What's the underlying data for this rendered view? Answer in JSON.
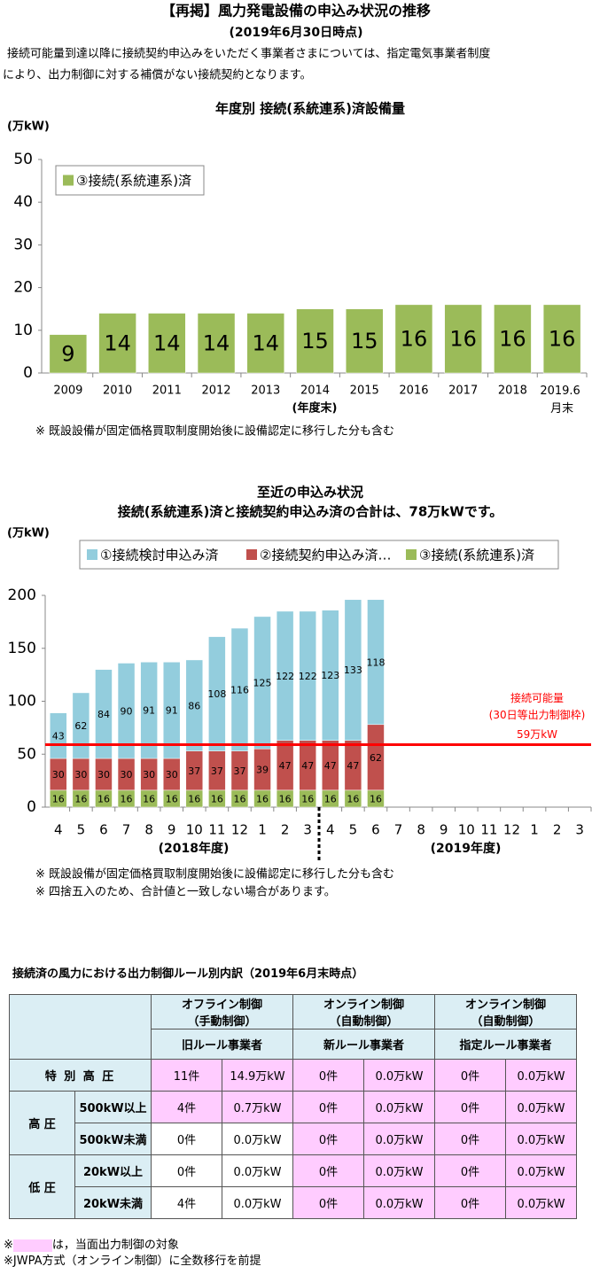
{
  "header": {
    "title": "【再掲】風力発電設備の申込み状況の推移",
    "date": "(2019年6月30日時点)",
    "notes": [
      "接続可能量到達以降に接続契約申込みをいただく事業者さまについては、指定電気事業者制度",
      "により、出力制御に対する補償がない接続契約となります。"
    ]
  },
  "chart_data": [
    {
      "type": "bar",
      "title": "年度別  接続(系統連系)済設備量",
      "y_label": "(万kW)",
      "x_label": "(年度末)",
      "categories": [
        "2009",
        "2010",
        "2011",
        "2012",
        "2013",
        "2014",
        "2015",
        "2016",
        "2017",
        "2018",
        "2019.6 月末"
      ],
      "series": [
        {
          "name": "③接続(系統連系)済",
          "color": "#9bbb59",
          "values": [
            9,
            14,
            14,
            14,
            14,
            15,
            15,
            16,
            16,
            16,
            16
          ]
        }
      ],
      "ylim": [
        0,
        50
      ],
      "yticks": [
        0,
        10,
        20,
        30,
        40,
        50
      ],
      "legend": "upper left",
      "notes": [
        "※ 既設設備が固定価格買取制度開始後に設備認定に移行した分も含む"
      ]
    },
    {
      "type": "bar",
      "stacked": true,
      "title": "至近の申込み状況",
      "subtitle": "接続(系統連系)済と接続契約申込み済の合計は、78万kWです。",
      "y_label": "(万kW)",
      "categories": [
        "4",
        "5",
        "6",
        "7",
        "8",
        "9",
        "10",
        "11",
        "12",
        "1",
        "2",
        "3",
        "4",
        "5",
        "6",
        "7",
        "8",
        "9",
        "10",
        "11",
        "12",
        "1",
        "2",
        "3"
      ],
      "period_labels": [
        "(2018年度)",
        "(2019年度)"
      ],
      "series": [
        {
          "name": "①接続検討申込み済",
          "color": "#93cddd",
          "values": [
            43,
            62,
            84,
            90,
            91,
            91,
            86,
            108,
            116,
            125,
            122,
            122,
            123,
            133,
            118,
            null,
            null,
            null,
            null,
            null,
            null,
            null,
            null,
            null
          ]
        },
        {
          "name": "②接続契約申込み済…",
          "color": "#c0504d",
          "values": [
            30,
            30,
            30,
            30,
            30,
            30,
            37,
            37,
            37,
            39,
            47,
            47,
            47,
            47,
            62,
            null,
            null,
            null,
            null,
            null,
            null,
            null,
            null,
            null
          ]
        },
        {
          "name": "③接続(系統連系)済",
          "color": "#9bbb59",
          "values": [
            16,
            16,
            16,
            16,
            16,
            16,
            16,
            16,
            16,
            16,
            16,
            16,
            16,
            16,
            16,
            null,
            null,
            null,
            null,
            null,
            null,
            null,
            null,
            null
          ]
        }
      ],
      "reference_line": {
        "value": 59,
        "color": "#ff0000",
        "labels": [
          "接続可能量",
          "(30日等出力制御枠)",
          "59万kW"
        ]
      },
      "ylim": [
        0,
        200
      ],
      "yticks": [
        0,
        50,
        100,
        150,
        200
      ],
      "legend": "top",
      "notes": [
        "※ 既設設備が固定価格買取制度開始後に設備認定に移行した分も含む",
        "※ 四捨五入のため、合計値と一致しない場合があります。"
      ]
    }
  ],
  "table": {
    "title": "接続済の風力における出力制御ルール別内訳（2019年6月末時点）",
    "columns": [
      {
        "group": [
          "オフライン制御",
          "（手動制御）"
        ],
        "rule": "旧ルール事業者"
      },
      {
        "group": [
          "オンライン制御",
          "（自動制御）"
        ],
        "rule": "新ルール事業者"
      },
      {
        "group": [
          "オンライン制御",
          "（自動制御）"
        ],
        "rule": "指定ルール事業者"
      }
    ],
    "row_groups": [
      {
        "label": "特 別 高 圧",
        "rows": [
          {
            "cells": [
              "11件",
              "14.9万kW",
              "0件",
              "0.0万kW",
              "0件",
              "0.0万kW"
            ],
            "highlight": [
              true,
              true,
              true,
              true,
              true,
              true
            ]
          }
        ]
      },
      {
        "label": "高 圧",
        "rows": [
          {
            "label": "500kW以上",
            "cells": [
              "4件",
              "0.7万kW",
              "0件",
              "0.0万kW",
              "0件",
              "0.0万kW"
            ],
            "highlight": [
              true,
              true,
              true,
              true,
              true,
              true
            ]
          },
          {
            "label": "500kW未満",
            "cells": [
              "0件",
              "0.0万kW",
              "0件",
              "0.0万kW",
              "0件",
              "0.0万kW"
            ],
            "highlight": [
              false,
              false,
              true,
              true,
              true,
              true
            ]
          }
        ]
      },
      {
        "label": "低 圧",
        "rows": [
          {
            "label": "20kW以上",
            "cells": [
              "0件",
              "0.0万kW",
              "0件",
              "0.0万kW",
              "0件",
              "0.0万kW"
            ],
            "highlight": [
              false,
              false,
              true,
              true,
              true,
              true
            ]
          },
          {
            "label": "20kW未満",
            "cells": [
              "4件",
              "0.0万kW",
              "0件",
              "0.0万kW",
              "0件",
              "0.0万kW"
            ],
            "highlight": [
              false,
              false,
              true,
              true,
              true,
              true
            ]
          }
        ]
      }
    ],
    "highlight_note": {
      "prefix": "※",
      "text": "は，当面出力制御の対象"
    },
    "notes": [
      "※JWPA方式（オンライン制御）に全数移行を前提"
    ]
  }
}
